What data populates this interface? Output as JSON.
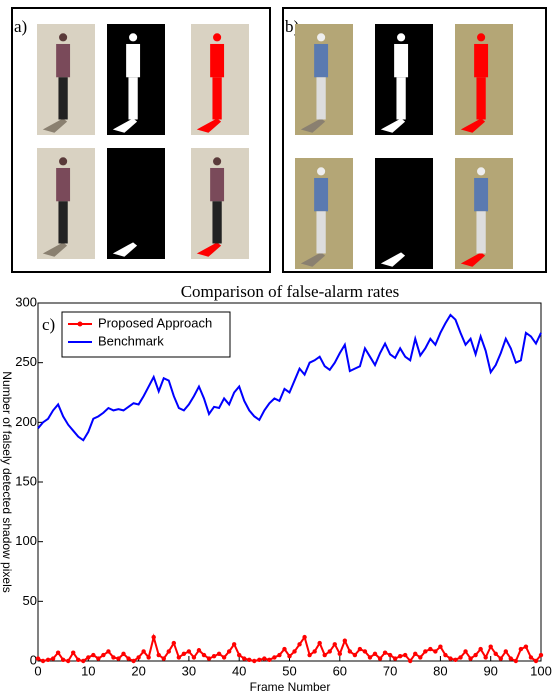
{
  "panels": {
    "a": "a)",
    "b": "b)"
  },
  "chart_data": {
    "type": "line",
    "label": "c)",
    "title": "Comparison of false-alarm rates",
    "x_label": "Frame Number",
    "y_label": "Number of falsely detected shadow pixels",
    "x": [
      0,
      1,
      2,
      3,
      4,
      5,
      6,
      7,
      8,
      9,
      10,
      11,
      12,
      13,
      14,
      15,
      16,
      17,
      18,
      19,
      20,
      21,
      22,
      23,
      24,
      25,
      26,
      27,
      28,
      29,
      30,
      31,
      32,
      33,
      34,
      35,
      36,
      37,
      38,
      39,
      40,
      41,
      42,
      43,
      44,
      45,
      46,
      47,
      48,
      49,
      50,
      51,
      52,
      53,
      54,
      55,
      56,
      57,
      58,
      59,
      60,
      61,
      62,
      63,
      64,
      65,
      66,
      67,
      68,
      69,
      70,
      71,
      72,
      73,
      74,
      75,
      76,
      77,
      78,
      79,
      80,
      81,
      82,
      83,
      84,
      85,
      86,
      87,
      88,
      89,
      90,
      91,
      92,
      93,
      94,
      95,
      96,
      97,
      98,
      99,
      100
    ],
    "series": [
      {
        "name": "Proposed Approach",
        "color": "#ff0000",
        "marker": true,
        "values": [
          2,
          0,
          1,
          2,
          7,
          1,
          0,
          7,
          1,
          0,
          3,
          5,
          2,
          5,
          8,
          3,
          2,
          6,
          2,
          0,
          3,
          8,
          3,
          20,
          5,
          2,
          8,
          15,
          3,
          6,
          8,
          3,
          9,
          5,
          2,
          4,
          6,
          3,
          8,
          14,
          5,
          2,
          1,
          0,
          1,
          2,
          1,
          3,
          5,
          10,
          4,
          8,
          14,
          20,
          5,
          8,
          15,
          5,
          8,
          14,
          6,
          17,
          8,
          5,
          10,
          8,
          3,
          6,
          2,
          7,
          5,
          2,
          4,
          5,
          0,
          6,
          3,
          8,
          10,
          8,
          12,
          5,
          2,
          1,
          3,
          8,
          2,
          5,
          10,
          3,
          12,
          6,
          2,
          8,
          2,
          0,
          10,
          12,
          3,
          0,
          5
        ]
      },
      {
        "name": "Benchmark",
        "color": "#0000ff",
        "marker": false,
        "values": [
          195,
          200,
          203,
          210,
          215,
          205,
          198,
          193,
          188,
          185,
          192,
          203,
          205,
          208,
          212,
          210,
          211,
          210,
          213,
          216,
          215,
          222,
          230,
          238,
          226,
          237,
          235,
          222,
          212,
          210,
          215,
          222,
          230,
          220,
          207,
          213,
          212,
          220,
          215,
          225,
          230,
          218,
          210,
          205,
          202,
          210,
          216,
          220,
          218,
          228,
          225,
          235,
          245,
          240,
          250,
          252,
          255,
          247,
          244,
          250,
          258,
          265,
          243,
          245,
          247,
          262,
          255,
          248,
          258,
          266,
          257,
          254,
          262,
          255,
          252,
          270,
          256,
          262,
          270,
          265,
          275,
          283,
          290,
          286,
          275,
          265,
          270,
          257,
          272,
          260,
          242,
          248,
          258,
          270,
          262,
          250,
          252,
          275,
          272,
          266,
          275
        ]
      }
    ],
    "xlim": [
      0,
      100
    ],
    "xticks": [
      0,
      10,
      20,
      30,
      40,
      50,
      60,
      70,
      80,
      90,
      100
    ],
    "ylim": [
      0,
      300
    ],
    "yticks": [
      0,
      50,
      100,
      150,
      200,
      250,
      300
    ],
    "legend": "upper left"
  }
}
